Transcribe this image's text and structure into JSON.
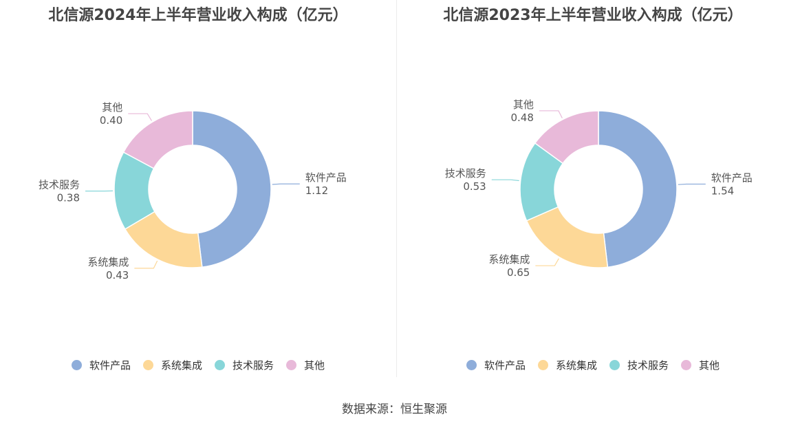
{
  "chart_data": [
    {
      "type": "pie",
      "title": "北信源2024年上半年营业收入构成（亿元）",
      "categories": [
        "软件产品",
        "系统集成",
        "技术服务",
        "其他"
      ],
      "values": [
        1.12,
        0.43,
        0.38,
        0.4
      ],
      "value_labels": [
        "1.12",
        "0.43",
        "0.38",
        "0.40"
      ],
      "donut": true,
      "legend_position": "bottom"
    },
    {
      "type": "pie",
      "title": "北信源2023年上半年营业收入构成（亿元）",
      "categories": [
        "软件产品",
        "系统集成",
        "技术服务",
        "其他"
      ],
      "values": [
        1.54,
        0.65,
        0.53,
        0.48
      ],
      "value_labels": [
        "1.54",
        "0.65",
        "0.53",
        "0.48"
      ],
      "donut": true,
      "legend_position": "bottom"
    }
  ],
  "colors": [
    "#8eadda",
    "#fdd897",
    "#88d6d9",
    "#e8b9d9"
  ],
  "source": "数据来源：恒生聚源"
}
